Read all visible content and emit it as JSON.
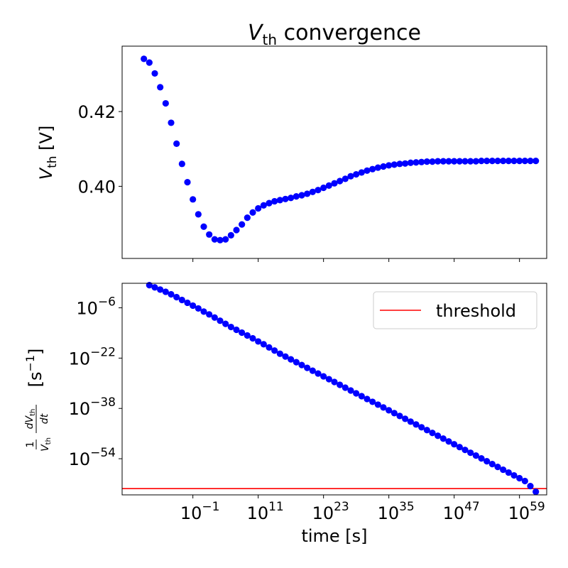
{
  "figure": {
    "title_main": "V",
    "title_sub": "th",
    "title_rest": " convergence"
  },
  "chart_data": [
    {
      "type": "scatter",
      "title": "V_th convergence",
      "ylabel_main": "V",
      "ylabel_sub": "th",
      "ylabel_rest": " [V]",
      "x_scale": "log",
      "xlim_exp": [
        -14,
        64
      ],
      "ylim": [
        0.3807,
        0.4375
      ],
      "yticks": [
        0.4,
        0.42
      ],
      "ytick_labels": [
        "0.40",
        "0.42"
      ],
      "marker_color": "#0000ff",
      "series": [
        {
          "x_exp": [
            -10,
            -9,
            -8,
            -7,
            -6,
            -5,
            -4,
            -3,
            -2,
            -1,
            0,
            1,
            2,
            3,
            4,
            5,
            6,
            7,
            8,
            9,
            10,
            11,
            12,
            13,
            14,
            15,
            16,
            17,
            18,
            19,
            20,
            21,
            22,
            23,
            24,
            25,
            26,
            27,
            28,
            29,
            30,
            31,
            32,
            33,
            34,
            35,
            36,
            37,
            38,
            39,
            40,
            41,
            42,
            43,
            44,
            45,
            46,
            47,
            48,
            49,
            50,
            51,
            52,
            53,
            54,
            55,
            56,
            57,
            58,
            59,
            60,
            61,
            62
          ],
          "y": [
            0.4341,
            0.4331,
            0.4302,
            0.4265,
            0.4222,
            0.417,
            0.4114,
            0.406,
            0.4011,
            0.3965,
            0.3925,
            0.3892,
            0.3871,
            0.3858,
            0.3856,
            0.3858,
            0.3869,
            0.3883,
            0.3898,
            0.3916,
            0.393,
            0.3941,
            0.3949,
            0.3955,
            0.396,
            0.3963,
            0.3966,
            0.3969,
            0.3973,
            0.3976,
            0.398,
            0.3985,
            0.399,
            0.3996,
            0.4002,
            0.4008,
            0.4014,
            0.402,
            0.4027,
            0.4032,
            0.4037,
            0.4042,
            0.4046,
            0.405,
            0.4053,
            0.4056,
            0.4058,
            0.406,
            0.4061,
            0.4063,
            0.4064,
            0.4065,
            0.4066,
            0.4066,
            0.4067,
            0.4067,
            0.4067,
            0.4067,
            0.4067,
            0.4067,
            0.4067,
            0.4067,
            0.4068,
            0.4068,
            0.4068,
            0.4068,
            0.4068,
            0.4068,
            0.4068,
            0.4068,
            0.4068,
            0.4068,
            0.4068
          ]
        }
      ]
    },
    {
      "type": "scatter",
      "xlabel": "time [s]",
      "ylabel_prefix": "1",
      "ylabel_frac_num": "dV",
      "ylabel_frac_num_sub": "th",
      "ylabel_frac_den": "dt",
      "ylabel_den_main": "V",
      "ylabel_den_sub": "th",
      "ylabel_unit_open": "[s",
      "ylabel_unit_exp": "−1",
      "ylabel_unit_close": "]",
      "x_scale": "log",
      "y_scale": "log",
      "xlim_exp": [
        -14,
        64
      ],
      "ylim_exp": [
        -65.5,
        1.8
      ],
      "xticks_exp": [
        -1,
        11,
        23,
        35,
        47,
        59
      ],
      "xtick_labels": [
        {
          "base": "10",
          "exp": "−1"
        },
        {
          "base": "10",
          "exp": "11"
        },
        {
          "base": "10",
          "exp": "23"
        },
        {
          "base": "10",
          "exp": "35"
        },
        {
          "base": "10",
          "exp": "47"
        },
        {
          "base": "10",
          "exp": "59"
        }
      ],
      "yticks_exp": [
        -54,
        -38,
        -22,
        -6
      ],
      "ytick_labels": [
        {
          "base": "10",
          "exp": "−54"
        },
        {
          "base": "10",
          "exp": "−38"
        },
        {
          "base": "10",
          "exp": "−22"
        },
        {
          "base": "10",
          "exp": "−6"
        }
      ],
      "marker_color": "#0000ff",
      "threshold": {
        "name": "threshold",
        "y_exp": -63.5,
        "color": "#ff0000"
      },
      "legend": {
        "label": "threshold",
        "position": "top-right"
      },
      "series": [
        {
          "x_exp": [
            -9,
            -8,
            -7,
            -6,
            -5,
            -4,
            -3,
            -2,
            -1,
            0,
            1,
            2,
            3,
            4,
            5,
            6,
            7,
            8,
            9,
            10,
            11,
            12,
            13,
            14,
            15,
            16,
            17,
            18,
            19,
            20,
            21,
            22,
            23,
            24,
            25,
            26,
            27,
            28,
            29,
            30,
            31,
            32,
            33,
            34,
            35,
            36,
            37,
            38,
            39,
            40,
            41,
            42,
            43,
            44,
            45,
            46,
            47,
            48,
            49,
            50,
            51,
            52,
            53,
            54,
            55,
            56,
            57,
            58,
            59,
            60,
            61,
            62
          ],
          "y_exp": [
            1.2,
            0.5,
            -0.2,
            -0.9,
            -1.7,
            -2.6,
            -3.5,
            -4.4,
            -5.3,
            -6.2,
            -7.2,
            -8.1,
            -9.1,
            -10.1,
            -11.1,
            -12.1,
            -13.0,
            -13.9,
            -14.8,
            -15.7,
            -16.7,
            -17.6,
            -18.6,
            -19.6,
            -20.6,
            -21.5,
            -22.4,
            -23.3,
            -24.2,
            -25.1,
            -26.0,
            -26.9,
            -27.8,
            -28.7,
            -29.6,
            -30.5,
            -31.4,
            -32.3,
            -33.2,
            -34.1,
            -35.0,
            -35.9,
            -36.8,
            -37.7,
            -38.6,
            -39.5,
            -40.4,
            -41.3,
            -42.2,
            -43.1,
            -44.0,
            -44.9,
            -45.8,
            -46.7,
            -47.6,
            -48.5,
            -49.4,
            -50.3,
            -51.2,
            -52.1,
            -53.0,
            -53.9,
            -54.8,
            -55.7,
            -56.6,
            -57.5,
            -58.4,
            -59.3,
            -60.2,
            -61.1,
            -62.7,
            -64.5
          ]
        }
      ]
    }
  ]
}
